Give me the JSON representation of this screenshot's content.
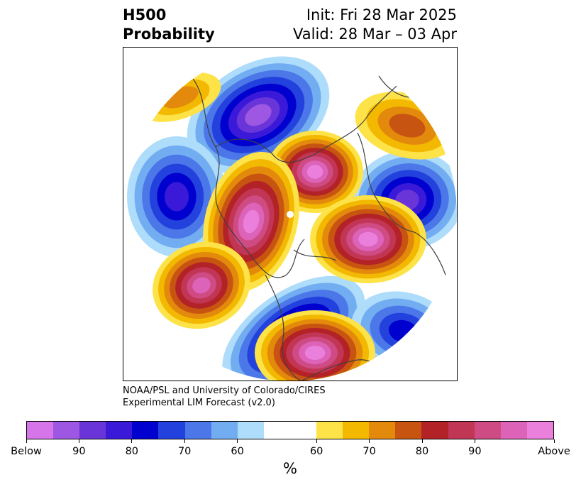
{
  "header": {
    "variable": "H500",
    "product": "Probability",
    "init": "Init: Fri 28 Mar 2025",
    "valid": "Valid: 28 Mar – 03 Apr"
  },
  "credit": {
    "line1": "NOAA/PSL and University of Colorado/CIRES",
    "line2": "Experimental LIM Forecast (v2.0)"
  },
  "colorbar": {
    "colors": [
      "#d674ea",
      "#9d57e2",
      "#6a35d8",
      "#3a1ad8",
      "#0000cf",
      "#2341dc",
      "#4b77e8",
      "#73adf1",
      "#aedcfb",
      "#ffffff",
      "#ffffff",
      "#fde248",
      "#f3b800",
      "#e38a0d",
      "#c85412",
      "#b22226",
      "#c23655",
      "#cf4b83",
      "#dc63b8",
      "#ea7fdc"
    ],
    "labels": [
      "Below",
      "90",
      "80",
      "70",
      "60",
      "60",
      "70",
      "80",
      "90",
      "Above"
    ],
    "unit": "%"
  },
  "map_colors": {
    "below": [
      "#aedcfb",
      "#73adf1",
      "#4b77e8",
      "#2341dc",
      "#0000cf",
      "#3a1ad8",
      "#6a35d8",
      "#9d57e2",
      "#d674ea"
    ],
    "above": [
      "#fde248",
      "#f3b800",
      "#e38a0d",
      "#c85412",
      "#b22226",
      "#c23655",
      "#cf4b83",
      "#dc63b8",
      "#ea7fdc"
    ],
    "coastline": "#3f3f3f"
  }
}
